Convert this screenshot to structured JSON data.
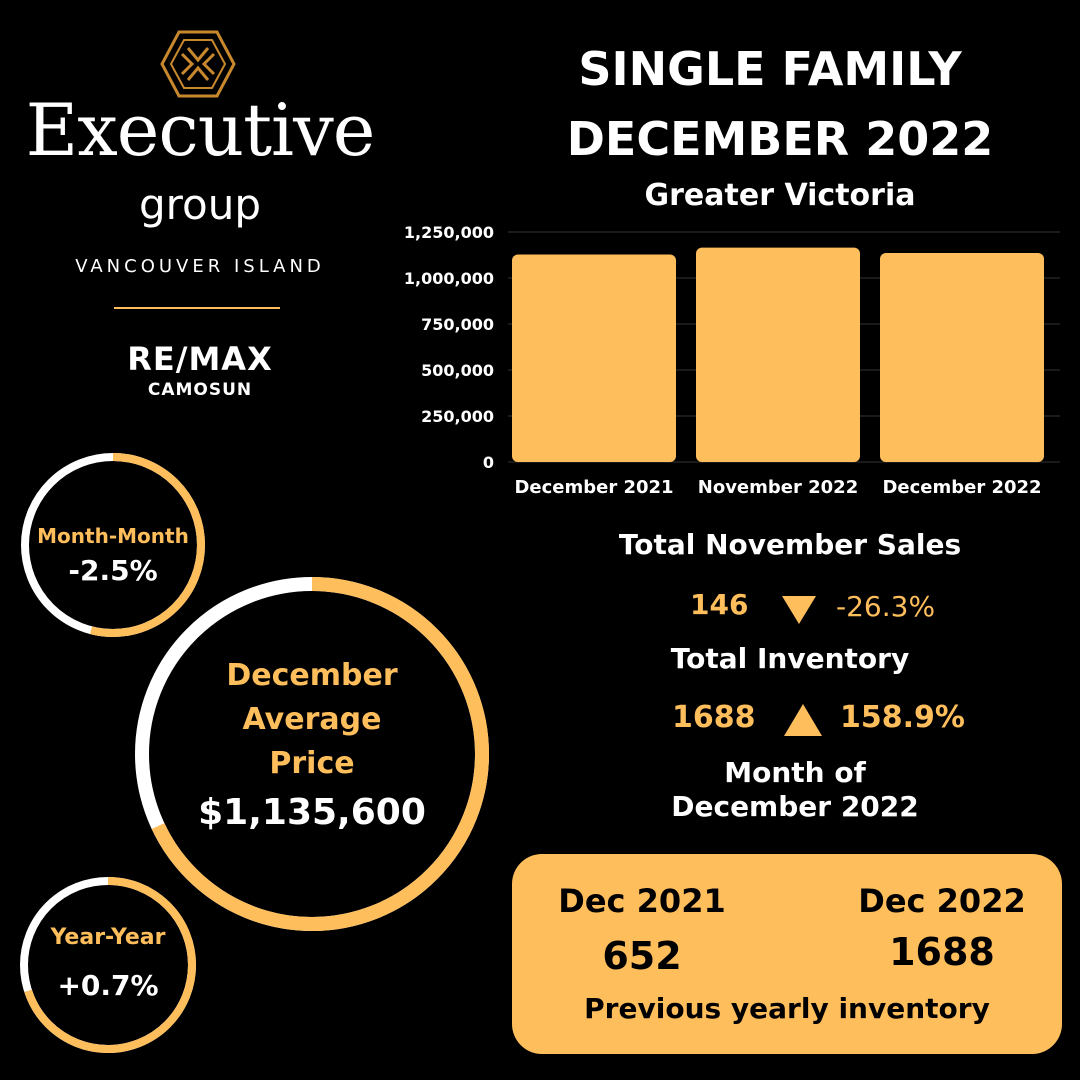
{
  "brand": {
    "main": "Executive",
    "sub": "group",
    "region": "VANCOUVER ISLAND",
    "partner": "RE/MAX",
    "partner_sub": "CAMOSUN",
    "logo_icon": "hexagon-monogram-icon"
  },
  "title": {
    "line1": "SINGLE FAMILY",
    "line2": "DECEMBER 2022",
    "region": "Greater Victoria"
  },
  "colors": {
    "accent": "#ffbe5c",
    "background": "#000000",
    "ring_track": "#ffffff"
  },
  "chart_data": {
    "type": "bar",
    "categories": [
      "December 2021",
      "November 2022",
      "December 2022"
    ],
    "values": [
      1127500,
      1165000,
      1135600
    ],
    "ylim": [
      0,
      1250000
    ],
    "yticks": [
      0,
      250000,
      500000,
      750000,
      1000000,
      1250000
    ],
    "ytick_labels": [
      "0",
      "250,000",
      "500,000",
      "750,000",
      "1,000,000",
      "1,250,000"
    ],
    "grid": "horizontal",
    "title": "",
    "xlabel": "",
    "ylabel": ""
  },
  "sales": {
    "title": "Total November Sales",
    "count": "146",
    "direction_icon": "triangle-down-icon",
    "change": "-26.3%"
  },
  "inventory": {
    "title": "Total Inventory",
    "count": "1688",
    "direction_icon": "triangle-up-icon",
    "change": "158.9%"
  },
  "month_note": {
    "line1": "Month of",
    "line2": "December 2022"
  },
  "yearly_card": {
    "left_label": "Dec 2021",
    "left_value": "652",
    "right_label": "Dec 2022",
    "right_value": "1688",
    "caption": "Previous yearly inventory"
  },
  "rings": {
    "month_month": {
      "label": "Month-Month",
      "value": "-2.5%",
      "progress": 0.54
    },
    "average": {
      "line1": "December",
      "line2": "Average",
      "line3": "Price",
      "value": "$1,135,600",
      "progress": 0.68
    },
    "year_year": {
      "label": "Year-Year",
      "value": "+0.7%",
      "progress": 0.7
    }
  }
}
